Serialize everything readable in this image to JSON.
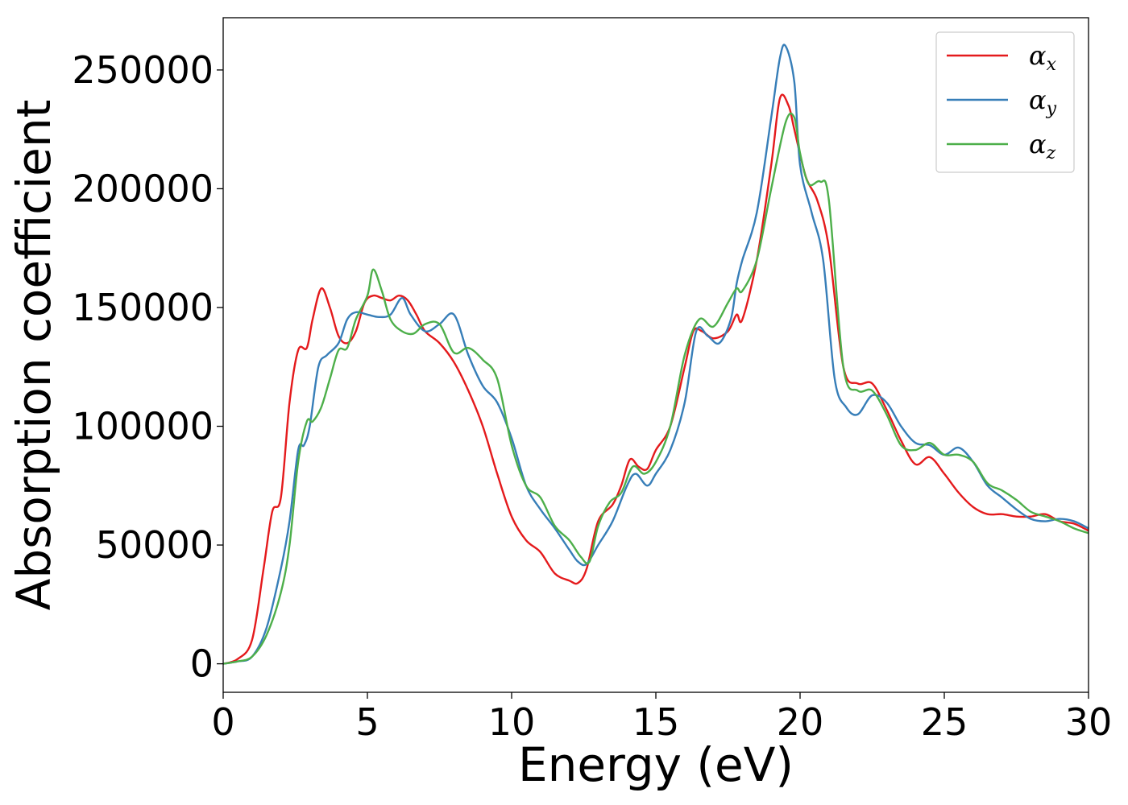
{
  "chart_data": {
    "type": "line",
    "xlabel": "Energy (eV)",
    "ylabel": "Absorption coefficient",
    "xlim": [
      0,
      30
    ],
    "ylim": [
      -12000,
      272000
    ],
    "xticks": [
      0,
      5,
      10,
      15,
      20,
      25,
      30
    ],
    "yticks": [
      0,
      50000,
      100000,
      150000,
      200000,
      250000
    ],
    "grid": false,
    "legend_position": "top-right",
    "series": [
      {
        "name": "αx",
        "symbol": "α",
        "subscript": "x",
        "color": "#e41a1c",
        "x": [
          0,
          0.5,
          1.0,
          1.4,
          1.7,
          2.0,
          2.3,
          2.6,
          2.9,
          3.1,
          3.4,
          3.7,
          4.0,
          4.3,
          4.6,
          4.9,
          5.2,
          5.5,
          5.8,
          6.1,
          6.4,
          6.7,
          7.0,
          7.5,
          8.0,
          8.5,
          9.0,
          9.5,
          10.0,
          10.5,
          11.0,
          11.5,
          12.0,
          12.3,
          12.6,
          13.0,
          13.5,
          13.8,
          14.1,
          14.4,
          14.7,
          15.0,
          15.5,
          16.0,
          16.3,
          16.6,
          17.0,
          17.5,
          17.8,
          18.0,
          18.5,
          19.0,
          19.3,
          19.6,
          19.8,
          20.2,
          20.6,
          21.0,
          21.5,
          22.0,
          22.5,
          23.0,
          23.5,
          24.0,
          24.5,
          25.0,
          25.5,
          26.0,
          26.5,
          27.0,
          27.5,
          28.0,
          28.5,
          29.0,
          29.5,
          30.0
        ],
        "y": [
          0,
          2000,
          10000,
          40000,
          64000,
          70000,
          110000,
          132000,
          133000,
          145000,
          158000,
          150000,
          138000,
          135000,
          140000,
          152000,
          155000,
          154000,
          153000,
          155000,
          153000,
          147000,
          140000,
          135000,
          127000,
          115000,
          100000,
          80000,
          62000,
          52000,
          47000,
          38000,
          35000,
          34000,
          40000,
          60000,
          67000,
          75000,
          86000,
          83000,
          82000,
          90000,
          100000,
          125000,
          140000,
          140000,
          137000,
          140000,
          147000,
          145000,
          170000,
          210000,
          238000,
          235000,
          225000,
          205000,
          195000,
          175000,
          125000,
          118000,
          118000,
          107000,
          94000,
          84000,
          87000,
          80000,
          72000,
          66000,
          63000,
          63000,
          62000,
          62000,
          63000,
          60000,
          59000,
          56000
        ]
      },
      {
        "name": "αy",
        "symbol": "α",
        "subscript": "y",
        "color": "#377eb8",
        "x": [
          0,
          0.5,
          1.0,
          1.5,
          2.0,
          2.3,
          2.6,
          2.8,
          3.0,
          3.3,
          3.6,
          4.0,
          4.3,
          4.6,
          5.0,
          5.4,
          5.8,
          6.2,
          6.5,
          7.0,
          7.5,
          8.0,
          8.5,
          9.0,
          9.5,
          10.0,
          10.5,
          11.0,
          11.5,
          12.0,
          12.3,
          12.6,
          13.0,
          13.5,
          14.0,
          14.3,
          14.7,
          15.0,
          15.5,
          16.0,
          16.4,
          16.8,
          17.2,
          17.6,
          17.8,
          18.0,
          18.5,
          19.0,
          19.3,
          19.5,
          19.8,
          20.0,
          20.4,
          20.8,
          21.2,
          21.6,
          22.0,
          22.5,
          23.0,
          23.5,
          24.0,
          24.5,
          25.0,
          25.5,
          26.0,
          26.5,
          27.0,
          27.5,
          28.0,
          28.5,
          29.0,
          29.5,
          30.0
        ],
        "y": [
          0,
          1000,
          3000,
          15000,
          40000,
          60000,
          90000,
          92000,
          100000,
          125000,
          130000,
          135000,
          145000,
          148000,
          147000,
          146000,
          147000,
          154000,
          147000,
          140000,
          143000,
          147000,
          130000,
          117000,
          110000,
          95000,
          75000,
          65000,
          57000,
          48000,
          43000,
          42000,
          50000,
          60000,
          75000,
          80000,
          75000,
          80000,
          90000,
          110000,
          140000,
          138000,
          135000,
          145000,
          160000,
          170000,
          190000,
          230000,
          255000,
          260000,
          245000,
          210000,
          190000,
          170000,
          120000,
          108000,
          105000,
          113000,
          110000,
          100000,
          93000,
          92000,
          88000,
          91000,
          85000,
          75000,
          70000,
          65000,
          61000,
          60000,
          61000,
          60000,
          57000
        ]
      },
      {
        "name": "αz",
        "symbol": "α",
        "subscript": "z",
        "color": "#4daf4a",
        "x": [
          0,
          0.5,
          1.0,
          1.5,
          2.0,
          2.3,
          2.6,
          2.9,
          3.1,
          3.4,
          3.7,
          4.0,
          4.3,
          4.6,
          5.0,
          5.2,
          5.5,
          5.8,
          6.2,
          6.6,
          7.0,
          7.5,
          8.0,
          8.5,
          9.0,
          9.5,
          10.0,
          10.5,
          11.0,
          11.5,
          12.0,
          12.4,
          12.7,
          13.0,
          13.4,
          13.8,
          14.2,
          14.6,
          15.0,
          15.5,
          16.0,
          16.5,
          17.0,
          17.5,
          17.8,
          18.0,
          18.5,
          19.0,
          19.5,
          19.8,
          20.0,
          20.3,
          20.7,
          21.0,
          21.5,
          22.0,
          22.5,
          23.0,
          23.5,
          24.0,
          24.5,
          25.0,
          25.5,
          26.0,
          26.5,
          27.0,
          27.5,
          28.0,
          28.5,
          29.0,
          29.5,
          30.0
        ],
        "y": [
          0,
          1000,
          3000,
          12000,
          30000,
          50000,
          85000,
          102000,
          102000,
          108000,
          120000,
          132000,
          133000,
          145000,
          155000,
          166000,
          157000,
          145000,
          140000,
          139000,
          143000,
          143000,
          131000,
          133000,
          128000,
          120000,
          92000,
          75000,
          70000,
          58000,
          52000,
          45000,
          43000,
          58000,
          68000,
          72000,
          83000,
          80000,
          85000,
          100000,
          130000,
          145000,
          142000,
          152000,
          158000,
          157000,
          170000,
          200000,
          228000,
          230000,
          215000,
          202000,
          203000,
          195000,
          125000,
          115000,
          115000,
          105000,
          92000,
          90000,
          93000,
          88000,
          88000,
          85000,
          76000,
          73000,
          69000,
          64000,
          62000,
          60000,
          57000,
          55000
        ]
      }
    ]
  }
}
